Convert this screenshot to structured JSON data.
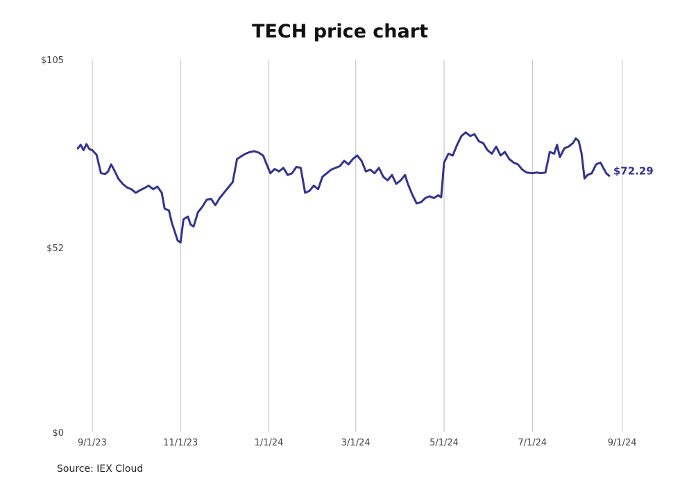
{
  "chart_data": {
    "type": "line",
    "title": "TECH price chart",
    "source": "Source: IEX Cloud",
    "xlabel": "",
    "ylabel": "",
    "ylim": [
      0,
      105
    ],
    "y_ticks": [
      {
        "value": 105,
        "label": "$105"
      },
      {
        "value": 52,
        "label": "$52"
      },
      {
        "value": 0,
        "label": "$0"
      }
    ],
    "x_ticks": [
      {
        "date": "2023-09-01",
        "label": "9/1/23"
      },
      {
        "date": "2023-11-01",
        "label": "11/1/23"
      },
      {
        "date": "2024-01-01",
        "label": "1/1/24"
      },
      {
        "date": "2024-03-01",
        "label": "3/1/24"
      },
      {
        "date": "2024-05-01",
        "label": "5/1/24"
      },
      {
        "date": "2024-07-01",
        "label": "7/1/24"
      },
      {
        "date": "2024-09-01",
        "label": "9/1/24"
      }
    ],
    "xlim": [
      "2023-08-21",
      "2024-09-05"
    ],
    "grid": "vertical",
    "line_color": "#33338f",
    "last_value_label": "$72.29",
    "series": [
      {
        "points": [
          [
            "2023-08-22",
            80.0
          ],
          [
            "2023-08-24",
            81.0
          ],
          [
            "2023-08-26",
            79.5
          ],
          [
            "2023-08-28",
            81.2
          ],
          [
            "2023-08-30",
            79.8
          ],
          [
            "2023-09-01",
            79.5
          ],
          [
            "2023-09-04",
            78.2
          ],
          [
            "2023-09-07",
            73.0
          ],
          [
            "2023-09-10",
            72.8
          ],
          [
            "2023-09-12",
            73.5
          ],
          [
            "2023-09-14",
            75.5
          ],
          [
            "2023-09-16",
            74.0
          ],
          [
            "2023-09-19",
            71.5
          ],
          [
            "2023-09-22",
            70.0
          ],
          [
            "2023-09-25",
            69.0
          ],
          [
            "2023-09-28",
            68.5
          ],
          [
            "2023-10-01",
            67.5
          ],
          [
            "2023-10-04",
            68.2
          ],
          [
            "2023-10-07",
            68.8
          ],
          [
            "2023-10-10",
            69.5
          ],
          [
            "2023-10-13",
            68.5
          ],
          [
            "2023-10-16",
            69.2
          ],
          [
            "2023-10-19",
            67.5
          ],
          [
            "2023-10-21",
            63.0
          ],
          [
            "2023-10-24",
            62.5
          ],
          [
            "2023-10-26",
            59.0
          ],
          [
            "2023-10-28",
            56.5
          ],
          [
            "2023-10-30",
            54.0
          ],
          [
            "2023-11-01",
            53.5
          ],
          [
            "2023-11-03",
            60.0
          ],
          [
            "2023-11-06",
            60.8
          ],
          [
            "2023-11-08",
            58.5
          ],
          [
            "2023-11-10",
            58.0
          ],
          [
            "2023-11-13",
            62.0
          ],
          [
            "2023-11-16",
            63.5
          ],
          [
            "2023-11-19",
            65.5
          ],
          [
            "2023-11-22",
            65.8
          ],
          [
            "2023-11-25",
            64.0
          ],
          [
            "2023-11-28",
            66.0
          ],
          [
            "2023-12-01",
            67.5
          ],
          [
            "2023-12-04",
            69.0
          ],
          [
            "2023-12-07",
            70.5
          ],
          [
            "2023-12-10",
            77.0
          ],
          [
            "2023-12-13",
            77.8
          ],
          [
            "2023-12-16",
            78.5
          ],
          [
            "2023-12-19",
            79.0
          ],
          [
            "2023-12-22",
            79.2
          ],
          [
            "2023-12-25",
            78.8
          ],
          [
            "2023-12-28",
            78.0
          ],
          [
            "2024-01-02",
            73.0
          ],
          [
            "2024-01-05",
            74.2
          ],
          [
            "2024-01-08",
            73.5
          ],
          [
            "2024-01-11",
            74.5
          ],
          [
            "2024-01-14",
            72.5
          ],
          [
            "2024-01-17",
            73.0
          ],
          [
            "2024-01-20",
            74.8
          ],
          [
            "2024-01-23",
            74.5
          ],
          [
            "2024-01-26",
            67.5
          ],
          [
            "2024-01-29",
            68.0
          ],
          [
            "2024-02-01",
            69.5
          ],
          [
            "2024-02-04",
            68.5
          ],
          [
            "2024-02-07",
            72.0
          ],
          [
            "2024-02-10",
            73.0
          ],
          [
            "2024-02-13",
            74.0
          ],
          [
            "2024-02-16",
            74.5
          ],
          [
            "2024-02-19",
            75.0
          ],
          [
            "2024-02-22",
            76.5
          ],
          [
            "2024-02-25",
            75.5
          ],
          [
            "2024-02-28",
            77.0
          ],
          [
            "2024-03-02",
            78.0
          ],
          [
            "2024-03-05",
            76.5
          ],
          [
            "2024-03-08",
            73.5
          ],
          [
            "2024-03-11",
            74.0
          ],
          [
            "2024-03-14",
            73.0
          ],
          [
            "2024-03-17",
            74.5
          ],
          [
            "2024-03-20",
            72.0
          ],
          [
            "2024-03-23",
            71.0
          ],
          [
            "2024-03-26",
            72.5
          ],
          [
            "2024-03-29",
            70.0
          ],
          [
            "2024-04-01",
            71.0
          ],
          [
            "2024-04-04",
            72.5
          ],
          [
            "2024-04-06",
            70.0
          ],
          [
            "2024-04-09",
            67.0
          ],
          [
            "2024-04-12",
            64.5
          ],
          [
            "2024-04-15",
            64.8
          ],
          [
            "2024-04-18",
            66.0
          ],
          [
            "2024-04-21",
            66.5
          ],
          [
            "2024-04-24",
            66.0
          ],
          [
            "2024-04-27",
            66.8
          ],
          [
            "2024-04-29",
            66.2
          ],
          [
            "2024-05-01",
            76.0
          ],
          [
            "2024-05-04",
            78.5
          ],
          [
            "2024-05-07",
            78.0
          ],
          [
            "2024-05-10",
            81.0
          ],
          [
            "2024-05-13",
            83.5
          ],
          [
            "2024-05-16",
            84.5
          ],
          [
            "2024-05-19",
            83.5
          ],
          [
            "2024-05-22",
            84.0
          ],
          [
            "2024-05-25",
            82.0
          ],
          [
            "2024-05-28",
            81.5
          ],
          [
            "2024-05-31",
            79.5
          ],
          [
            "2024-06-03",
            78.5
          ],
          [
            "2024-06-06",
            80.5
          ],
          [
            "2024-06-09",
            78.0
          ],
          [
            "2024-06-12",
            79.0
          ],
          [
            "2024-06-15",
            77.0
          ],
          [
            "2024-06-18",
            76.0
          ],
          [
            "2024-06-21",
            75.5
          ],
          [
            "2024-06-24",
            74.0
          ],
          [
            "2024-06-27",
            73.2
          ],
          [
            "2024-07-01",
            73.0
          ],
          [
            "2024-07-04",
            73.2
          ],
          [
            "2024-07-07",
            73.0
          ],
          [
            "2024-07-10",
            73.2
          ],
          [
            "2024-07-13",
            79.0
          ],
          [
            "2024-07-16",
            78.5
          ],
          [
            "2024-07-18",
            81.0
          ],
          [
            "2024-07-20",
            77.5
          ],
          [
            "2024-07-23",
            80.0
          ],
          [
            "2024-07-26",
            80.5
          ],
          [
            "2024-07-29",
            81.5
          ],
          [
            "2024-07-31",
            82.8
          ],
          [
            "2024-08-02",
            82.0
          ],
          [
            "2024-08-04",
            78.5
          ],
          [
            "2024-08-06",
            71.5
          ],
          [
            "2024-08-08",
            72.5
          ],
          [
            "2024-08-11",
            73.0
          ],
          [
            "2024-08-14",
            75.5
          ],
          [
            "2024-08-17",
            76.0
          ],
          [
            "2024-08-19",
            74.5
          ],
          [
            "2024-08-21",
            73.0
          ],
          [
            "2024-08-23",
            72.29
          ]
        ]
      }
    ]
  }
}
